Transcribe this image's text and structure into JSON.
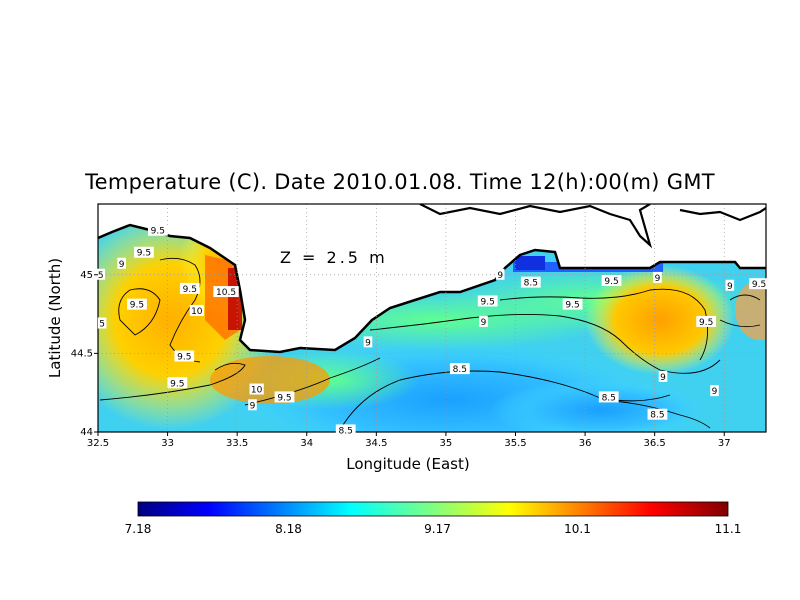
{
  "title": "Temperature (C). Date 2010.01.08. Time 12(h):00(m) GMT",
  "depth_label": "Z = 2.5 m",
  "x_axis": {
    "label": "Longitude (East)",
    "range": [
      32.5,
      37.3
    ],
    "ticks": [
      "32.5",
      "33",
      "33.5",
      "34",
      "34.5",
      "35",
      "35.5",
      "36",
      "36.5",
      "37"
    ]
  },
  "y_axis": {
    "label": "Latitude (North)",
    "range": [
      44,
      45.45
    ],
    "ticks": [
      "44",
      "44.5",
      "45"
    ]
  },
  "grid": "dotted",
  "colorbar": {
    "colormap": "jet",
    "min": 7.18,
    "max": 11.1,
    "tick_labels": [
      "7.18",
      "8.18",
      "9.17",
      "10.1",
      "11.1"
    ]
  },
  "contour_labels": [
    {
      "text": "9.5",
      "lon": 32.93,
      "lat": 45.28
    },
    {
      "text": "9.5",
      "lon": 32.83,
      "lat": 45.14
    },
    {
      "text": "9",
      "lon": 32.67,
      "lat": 45.07
    },
    {
      "text": "5",
      "lon": 32.52,
      "lat": 45.0
    },
    {
      "text": "9.5",
      "lon": 33.16,
      "lat": 44.91
    },
    {
      "text": "10.5",
      "lon": 33.42,
      "lat": 44.89
    },
    {
      "text": "9.5",
      "lon": 32.78,
      "lat": 44.81
    },
    {
      "text": "10",
      "lon": 33.21,
      "lat": 44.77
    },
    {
      "text": "5",
      "lon": 32.53,
      "lat": 44.69
    },
    {
      "text": "9.5",
      "lon": 33.12,
      "lat": 44.48
    },
    {
      "text": "9.5",
      "lon": 33.07,
      "lat": 44.31
    },
    {
      "text": "10",
      "lon": 33.64,
      "lat": 44.27
    },
    {
      "text": "9.5",
      "lon": 33.84,
      "lat": 44.22
    },
    {
      "text": "9",
      "lon": 33.61,
      "lat": 44.17
    },
    {
      "text": "8.5",
      "lon": 34.28,
      "lat": 44.01
    },
    {
      "text": "9",
      "lon": 34.44,
      "lat": 44.57
    },
    {
      "text": "8.5",
      "lon": 35.1,
      "lat": 44.4
    },
    {
      "text": "9",
      "lon": 35.27,
      "lat": 44.7
    },
    {
      "text": "9.5",
      "lon": 35.3,
      "lat": 44.83
    },
    {
      "text": "9",
      "lon": 35.39,
      "lat": 45.0
    },
    {
      "text": "8.5",
      "lon": 35.61,
      "lat": 44.95
    },
    {
      "text": "9.5",
      "lon": 35.91,
      "lat": 44.81
    },
    {
      "text": "9.5",
      "lon": 36.19,
      "lat": 44.96
    },
    {
      "text": "9",
      "lon": 36.52,
      "lat": 44.98
    },
    {
      "text": "9",
      "lon": 36.56,
      "lat": 44.35
    },
    {
      "text": "8.5",
      "lon": 36.17,
      "lat": 44.22
    },
    {
      "text": "8.5",
      "lon": 36.52,
      "lat": 44.11
    },
    {
      "text": "9",
      "lon": 36.93,
      "lat": 44.26
    },
    {
      "text": "9.5",
      "lon": 36.87,
      "lat": 44.7
    },
    {
      "text": "9",
      "lon": 37.04,
      "lat": 44.93
    },
    {
      "text": "9.5",
      "lon": 37.25,
      "lat": 44.94
    }
  ]
}
